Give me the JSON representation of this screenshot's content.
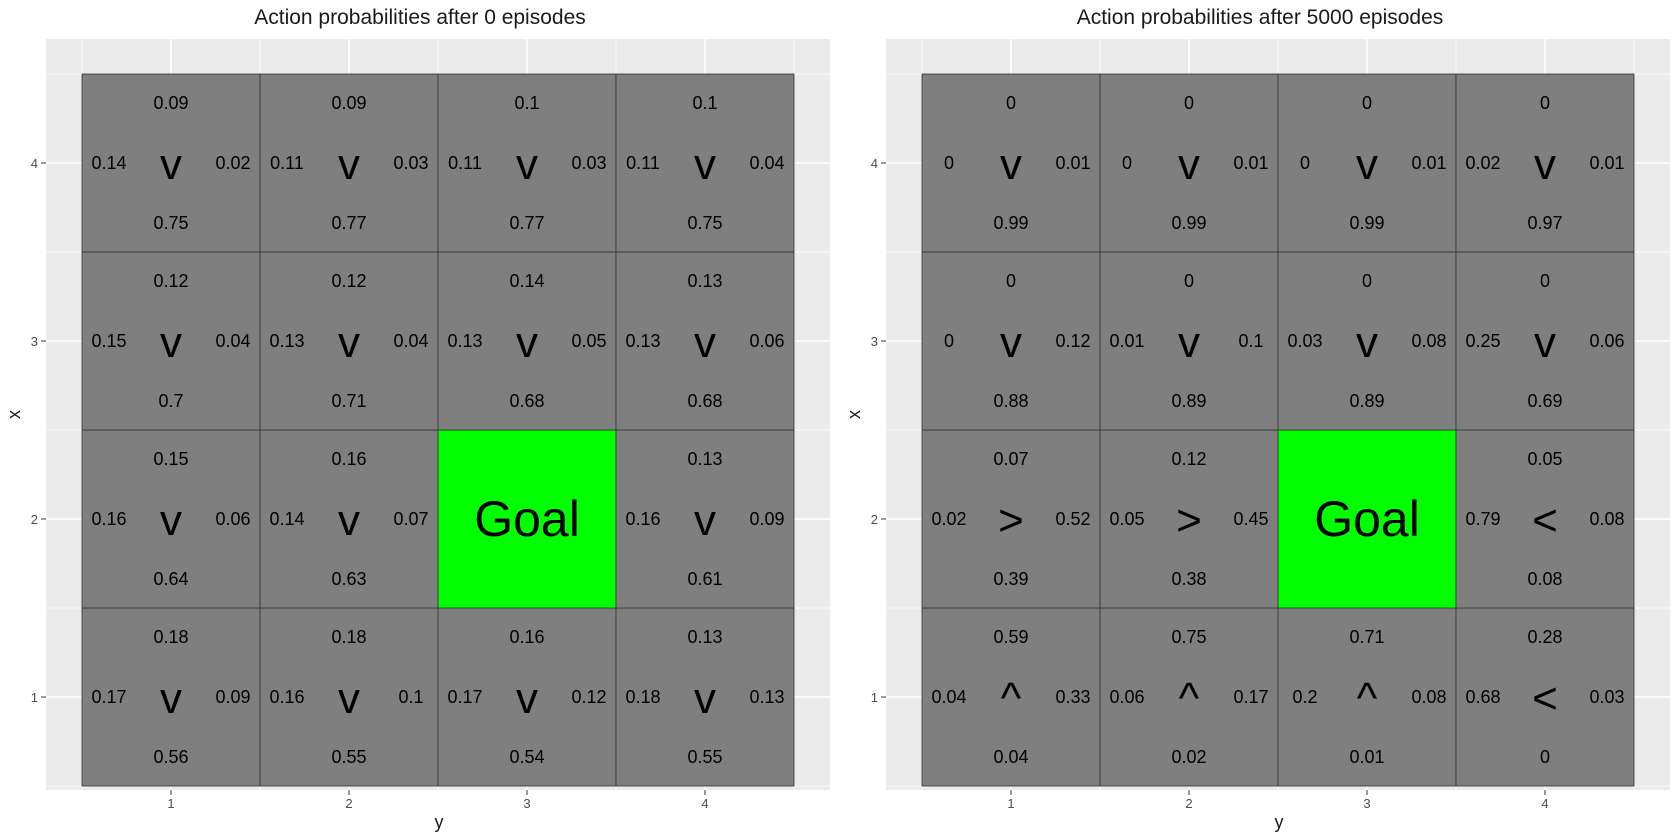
{
  "chart_data": [
    {
      "type": "table",
      "title": "Action probabilities after  0  episodes",
      "xlabel": "y",
      "ylabel": "x",
      "x_ticks": [
        "1",
        "2",
        "3",
        "4"
      ],
      "y_ticks": [
        "1",
        "2",
        "3",
        "4"
      ],
      "goal": {
        "row": 2,
        "col": 3,
        "label": "Goal",
        "color": "#00ff00"
      },
      "cell_color": "#7f7f7f",
      "panel_bg": "#ebebeb",
      "cells": [
        {
          "row": 4,
          "col": 1,
          "up": "0.09",
          "left": "0.14",
          "right": "0.02",
          "down": "0.75",
          "arrow": "v"
        },
        {
          "row": 4,
          "col": 2,
          "up": "0.09",
          "left": "0.11",
          "right": "0.03",
          "down": "0.77",
          "arrow": "v"
        },
        {
          "row": 4,
          "col": 3,
          "up": "0.1",
          "left": "0.11",
          "right": "0.03",
          "down": "0.77",
          "arrow": "v"
        },
        {
          "row": 4,
          "col": 4,
          "up": "0.1",
          "left": "0.11",
          "right": "0.04",
          "down": "0.75",
          "arrow": "v"
        },
        {
          "row": 3,
          "col": 1,
          "up": "0.12",
          "left": "0.15",
          "right": "0.04",
          "down": "0.7",
          "arrow": "v"
        },
        {
          "row": 3,
          "col": 2,
          "up": "0.12",
          "left": "0.13",
          "right": "0.04",
          "down": "0.71",
          "arrow": "v"
        },
        {
          "row": 3,
          "col": 3,
          "up": "0.14",
          "left": "0.13",
          "right": "0.05",
          "down": "0.68",
          "arrow": "v"
        },
        {
          "row": 3,
          "col": 4,
          "up": "0.13",
          "left": "0.13",
          "right": "0.06",
          "down": "0.68",
          "arrow": "v"
        },
        {
          "row": 2,
          "col": 1,
          "up": "0.15",
          "left": "0.16",
          "right": "0.06",
          "down": "0.64",
          "arrow": "v"
        },
        {
          "row": 2,
          "col": 2,
          "up": "0.16",
          "left": "0.14",
          "right": "0.07",
          "down": "0.63",
          "arrow": "v"
        },
        {
          "row": 2,
          "col": 4,
          "up": "0.13",
          "left": "0.16",
          "right": "0.09",
          "down": "0.61",
          "arrow": "v"
        },
        {
          "row": 1,
          "col": 1,
          "up": "0.18",
          "left": "0.17",
          "right": "0.09",
          "down": "0.56",
          "arrow": "v"
        },
        {
          "row": 1,
          "col": 2,
          "up": "0.18",
          "left": "0.16",
          "right": "0.1",
          "down": "0.55",
          "arrow": "v"
        },
        {
          "row": 1,
          "col": 3,
          "up": "0.16",
          "left": "0.17",
          "right": "0.12",
          "down": "0.54",
          "arrow": "v"
        },
        {
          "row": 1,
          "col": 4,
          "up": "0.13",
          "left": "0.18",
          "right": "0.13",
          "down": "0.55",
          "arrow": "v"
        }
      ]
    },
    {
      "type": "table",
      "title": "Action probabilities after  5000  episodes",
      "xlabel": "y",
      "ylabel": "x",
      "x_ticks": [
        "1",
        "2",
        "3",
        "4"
      ],
      "y_ticks": [
        "1",
        "2",
        "3",
        "4"
      ],
      "goal": {
        "row": 2,
        "col": 3,
        "label": "Goal",
        "color": "#00ff00"
      },
      "cell_color": "#7f7f7f",
      "panel_bg": "#ebebeb",
      "cells": [
        {
          "row": 4,
          "col": 1,
          "up": "0",
          "left": "0",
          "right": "0.01",
          "down": "0.99",
          "arrow": "v"
        },
        {
          "row": 4,
          "col": 2,
          "up": "0",
          "left": "0",
          "right": "0.01",
          "down": "0.99",
          "arrow": "v"
        },
        {
          "row": 4,
          "col": 3,
          "up": "0",
          "left": "0",
          "right": "0.01",
          "down": "0.99",
          "arrow": "v"
        },
        {
          "row": 4,
          "col": 4,
          "up": "0",
          "left": "0.02",
          "right": "0.01",
          "down": "0.97",
          "arrow": "v"
        },
        {
          "row": 3,
          "col": 1,
          "up": "0",
          "left": "0",
          "right": "0.12",
          "down": "0.88",
          "arrow": "v"
        },
        {
          "row": 3,
          "col": 2,
          "up": "0",
          "left": "0.01",
          "right": "0.1",
          "down": "0.89",
          "arrow": "v"
        },
        {
          "row": 3,
          "col": 3,
          "up": "0",
          "left": "0.03",
          "right": "0.08",
          "down": "0.89",
          "arrow": "v"
        },
        {
          "row": 3,
          "col": 4,
          "up": "0",
          "left": "0.25",
          "right": "0.06",
          "down": "0.69",
          "arrow": "v"
        },
        {
          "row": 2,
          "col": 1,
          "up": "0.07",
          "left": "0.02",
          "right": "0.52",
          "down": "0.39",
          "arrow": ">"
        },
        {
          "row": 2,
          "col": 2,
          "up": "0.12",
          "left": "0.05",
          "right": "0.45",
          "down": "0.38",
          "arrow": ">"
        },
        {
          "row": 2,
          "col": 4,
          "up": "0.05",
          "left": "0.79",
          "right": "0.08",
          "down": "0.08",
          "arrow": "<"
        },
        {
          "row": 1,
          "col": 1,
          "up": "0.59",
          "left": "0.04",
          "right": "0.33",
          "down": "0.04",
          "arrow": "^"
        },
        {
          "row": 1,
          "col": 2,
          "up": "0.75",
          "left": "0.06",
          "right": "0.17",
          "down": "0.02",
          "arrow": "^"
        },
        {
          "row": 1,
          "col": 3,
          "up": "0.71",
          "left": "0.2",
          "right": "0.08",
          "down": "0.01",
          "arrow": "^"
        },
        {
          "row": 1,
          "col": 4,
          "up": "0.28",
          "left": "0.68",
          "right": "0.03",
          "down": "0",
          "arrow": "<"
        }
      ]
    }
  ]
}
